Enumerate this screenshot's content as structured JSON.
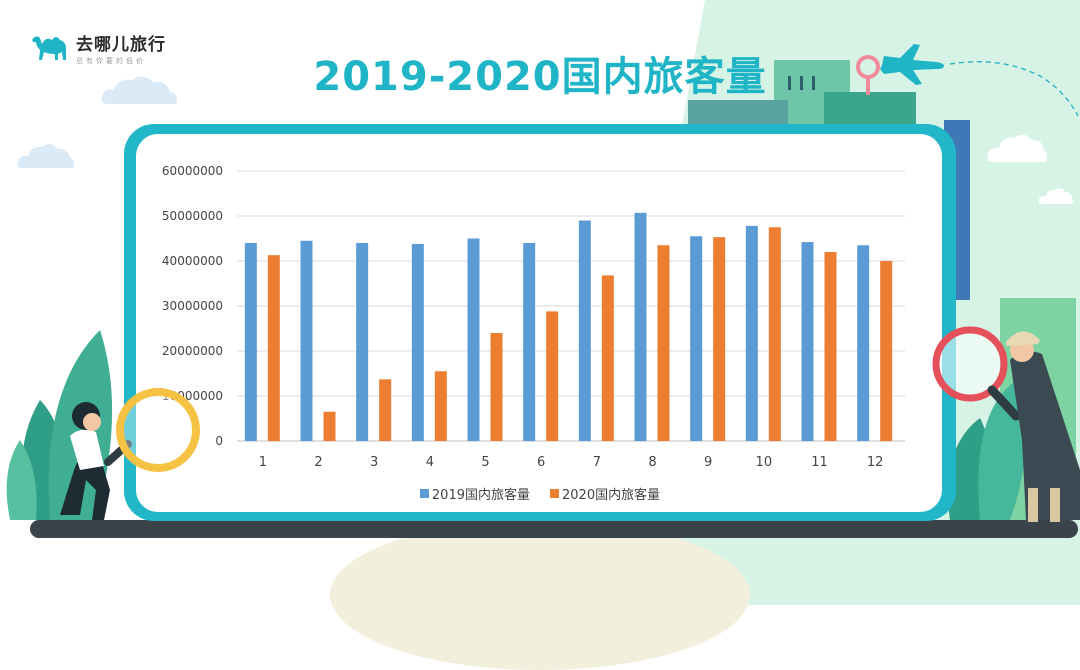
{
  "brand": {
    "name": "去哪儿旅行",
    "slogan": "总有你要的低价",
    "icon": "camel-icon",
    "color": "#1fb5c7"
  },
  "title": "2019-2020国内旅客量",
  "colors": {
    "series_2019": "#5b9bd5",
    "series_2020": "#ed7d31",
    "title": "#1fb5c7",
    "board": "#21b6c8"
  },
  "chart_data": {
    "type": "bar",
    "categories": [
      "1",
      "2",
      "3",
      "4",
      "5",
      "6",
      "7",
      "8",
      "9",
      "10",
      "11",
      "12"
    ],
    "series": [
      {
        "name": "2019国内旅客量",
        "color": "#5b9bd5",
        "values": [
          44000000,
          44500000,
          44000000,
          43800000,
          45000000,
          44000000,
          49000000,
          50700000,
          45500000,
          47800000,
          44200000,
          43500000
        ]
      },
      {
        "name": "2020国内旅客量",
        "color": "#ed7d31",
        "values": [
          41300000,
          6500000,
          13700000,
          15500000,
          24000000,
          28800000,
          36800000,
          43500000,
          45300000,
          47500000,
          42000000,
          40000000
        ]
      }
    ],
    "yticks": [
      "0",
      "10000000",
      "20000000",
      "30000000",
      "40000000",
      "50000000",
      "60000000"
    ],
    "ylim": [
      0,
      60000000
    ],
    "grid": true,
    "legend": "bottom"
  }
}
